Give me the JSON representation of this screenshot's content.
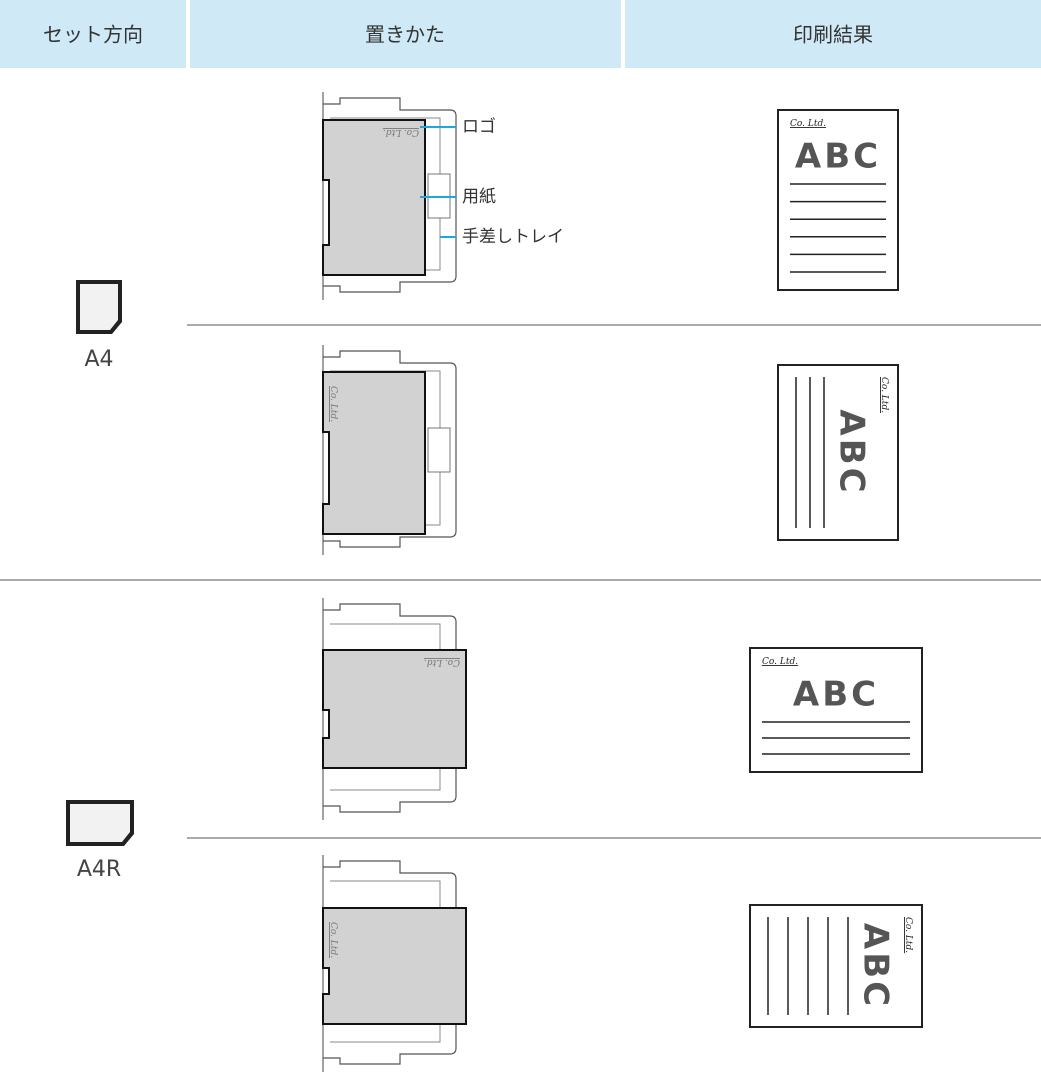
{
  "header": [
    "セット方向",
    "置きかた",
    "印刷結果"
  ],
  "groups": [
    {
      "label": "A4",
      "rows": [
        {
          "logo": "Co. Ltd.",
          "callouts": [
            "ロゴ",
            "用紙",
            "手差しトレイ"
          ],
          "result": {
            "logo": "Co. Ltd.",
            "text": "ABC"
          }
        },
        {
          "logo": "Co. Ltd.",
          "result": {
            "logo": "Co. Ltd.",
            "text": "ABC"
          }
        }
      ]
    },
    {
      "label": "A4R",
      "rows": [
        {
          "logo": "Co. Ltd.",
          "result": {
            "logo": "Co. Ltd.",
            "text": "ABC"
          }
        },
        {
          "logo": "Co. Ltd.",
          "result": {
            "logo": "Co. Ltd.",
            "text": "ABC"
          }
        }
      ]
    }
  ]
}
